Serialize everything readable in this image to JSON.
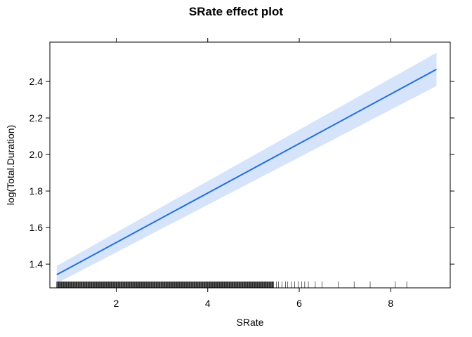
{
  "chart_data": {
    "type": "line",
    "title": "SRate effect plot",
    "xlabel": "SRate",
    "ylabel": "log(Total.Duration)",
    "xlim": [
      0.55,
      9.3
    ],
    "ylim": [
      1.27,
      2.615
    ],
    "x_ticks": [
      2,
      4,
      6,
      8
    ],
    "y_ticks": [
      1.4,
      1.6,
      1.8,
      2.0,
      2.2,
      2.4
    ],
    "y_tick_labels": [
      "1.4",
      "1.6",
      "1.8",
      "2.0",
      "2.2",
      "2.4"
    ],
    "grid": false,
    "legend": "none",
    "colors": {
      "line": "#1f6fe8",
      "band": "#d6e4fb",
      "axis": "#000000"
    },
    "series": [
      {
        "x": [
          0.7,
          9.0
        ],
        "y": [
          1.342,
          2.466
        ],
        "lower": [
          1.295,
          2.375
        ],
        "upper": [
          1.39,
          2.557
        ]
      }
    ],
    "rug": {
      "dense_range": [
        0.7,
        5.45
      ],
      "sparse_values": [
        5.5,
        5.55,
        5.62,
        5.7,
        5.75,
        5.83,
        5.9,
        5.98,
        6.05,
        6.12,
        6.2,
        6.35,
        6.5,
        6.85,
        7.2,
        7.55,
        8.1,
        8.35
      ]
    }
  }
}
